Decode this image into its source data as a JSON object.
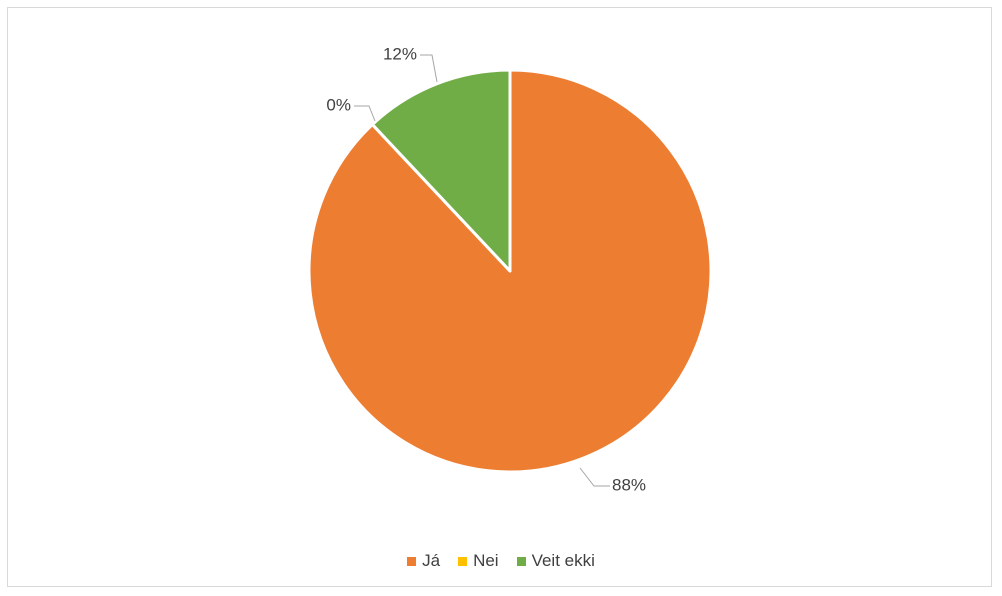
{
  "chart_data": {
    "type": "pie",
    "title": "",
    "series": [
      {
        "categories": [
          "Já",
          "Nei",
          "Veit ekki"
        ],
        "values": [
          88,
          0,
          12
        ],
        "labels": [
          "88%",
          "0%",
          "12%"
        ],
        "colors": [
          "#ed7d31",
          "#ffc000",
          "#70ad47"
        ]
      }
    ],
    "legend": {
      "position": "bottom",
      "entries": [
        "Já",
        "Nei",
        "Veit ekki"
      ]
    }
  }
}
